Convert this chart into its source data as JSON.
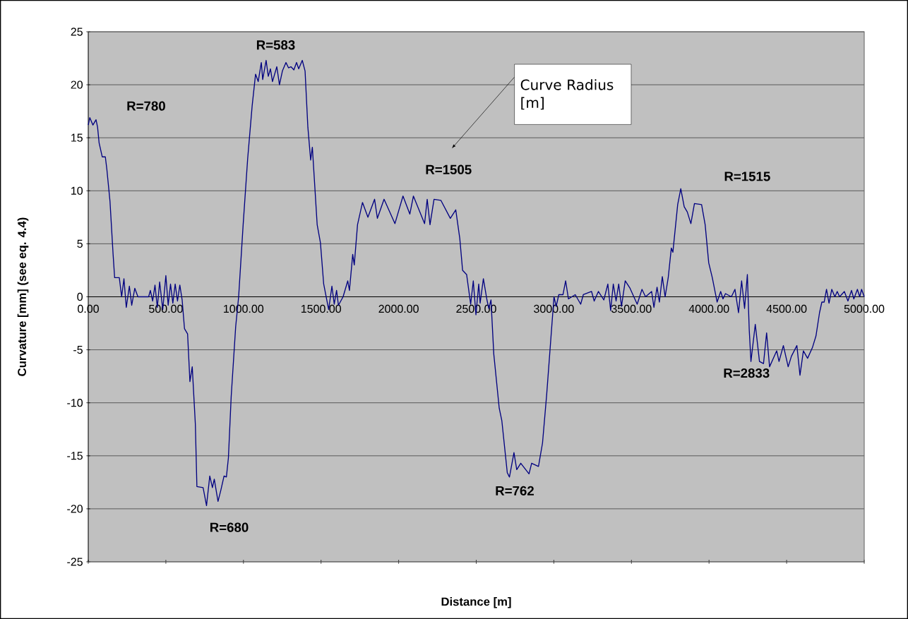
{
  "chart_data": {
    "type": "line",
    "xlabel": "Distance [m]",
    "ylabel": "Curvature [mm] (see eq. 4.4)",
    "x": [
      0,
      10,
      30,
      50,
      60,
      70,
      90,
      110,
      120,
      140,
      160,
      170,
      200,
      215,
      230,
      245,
      265,
      280,
      300,
      320,
      389,
      400,
      415,
      430,
      445,
      460,
      480,
      500,
      515,
      530,
      545,
      560,
      575,
      590,
      605,
      620,
      640,
      655,
      670,
      690,
      700,
      740,
      762,
      783,
      800,
      812,
      836,
      855,
      875,
      890,
      903,
      921,
      950,
      969,
      998,
      1027,
      1056,
      1078,
      1095,
      1115,
      1124,
      1146,
      1160,
      1174,
      1187,
      1215,
      1232,
      1251,
      1274,
      1290,
      1306,
      1325,
      1342,
      1356,
      1379,
      1397,
      1415,
      1433,
      1444,
      1475,
      1496,
      1517,
      1549,
      1570,
      1585,
      1600,
      1612,
      1642,
      1672,
      1683,
      1704,
      1714,
      1735,
      1767,
      1802,
      1845,
      1863,
      1906,
      1976,
      2028,
      2072,
      2095,
      2167,
      2184,
      2202,
      2228,
      2272,
      2333,
      2368,
      2394,
      2412,
      2438,
      2464,
      2481,
      2498,
      2516,
      2525,
      2546,
      2569,
      2581,
      2595,
      2613,
      2648,
      2665,
      2700,
      2714,
      2743,
      2761,
      2787,
      2840,
      2857,
      2901,
      2927,
      2954,
      2980,
      3001,
      3015,
      3032,
      3059,
      3076,
      3094,
      3138,
      3173,
      3190,
      3243,
      3260,
      3287,
      3322,
      3348,
      3366,
      3383,
      3401,
      3418,
      3436,
      3460,
      3491,
      3537,
      3568,
      3591,
      3630,
      3645,
      3665,
      3680,
      3699,
      3717,
      3737,
      3757,
      3767,
      3798,
      3818,
      3840,
      3860,
      3883,
      3906,
      3952,
      3975,
      3998,
      4021,
      4052,
      4075,
      4090,
      4106,
      4144,
      4167,
      4190,
      4210,
      4229,
      4247,
      4259,
      4270,
      4298,
      4325,
      4351,
      4371,
      4390,
      4436,
      4451,
      4479,
      4510,
      4531,
      4566,
      4586,
      4608,
      4635,
      4666,
      4689,
      4712,
      4727,
      4742,
      4757,
      4773,
      4791,
      4811,
      4826,
      4841,
      4872,
      4895,
      4918,
      4933,
      4956,
      4971,
      4983,
      5000
    ],
    "values": [
      16.2,
      16.9,
      16.2,
      16.7,
      16.0,
      14.5,
      13.2,
      13.2,
      12.0,
      9.0,
      4.0,
      1.8,
      1.8,
      0,
      1.7,
      -1.0,
      1.0,
      -0.8,
      0.8,
      0,
      0,
      0.6,
      -0.4,
      1.1,
      -1.0,
      1.4,
      -1.2,
      2.0,
      -0.8,
      1.2,
      -0.6,
      1.2,
      -0.4,
      1.1,
      -0.3,
      -3.0,
      -3.5,
      -8.0,
      -6.6,
      -12.0,
      -17.9,
      -18.0,
      -19.7,
      -16.9,
      -18.0,
      -17.2,
      -19.3,
      -18.2,
      -16.9,
      -17.0,
      -15.2,
      -9.4,
      -2.8,
      0,
      6.8,
      13.0,
      18.0,
      21.0,
      20.3,
      22.1,
      20.5,
      22.3,
      20.8,
      21.5,
      20.3,
      21.7,
      20.0,
      21.3,
      22.1,
      21.6,
      21.7,
      21.4,
      22.1,
      21.5,
      22.3,
      21.3,
      16.0,
      12.9,
      14.1,
      6.8,
      5.1,
      1.2,
      -1.2,
      1.0,
      -0.7,
      0.6,
      -0.8,
      0,
      1.5,
      0.6,
      4.0,
      3.0,
      6.8,
      8.9,
      7.5,
      9.2,
      7.4,
      9.2,
      6.9,
      9.5,
      7.8,
      9.5,
      6.9,
      9.2,
      6.8,
      9.2,
      9.1,
      7.4,
      8.2,
      5.5,
      2.5,
      2.1,
      -0.7,
      1.5,
      -1.7,
      1.2,
      -0.6,
      1.7,
      -0.3,
      -1.1,
      -0.3,
      -5.4,
      -10.5,
      -11.7,
      -16.6,
      -17.0,
      -14.7,
      -16.3,
      -15.7,
      -16.7,
      -15.7,
      -16.0,
      -13.8,
      -9.2,
      -4.1,
      0,
      -0.9,
      0.2,
      0.2,
      1.5,
      -0.2,
      0.2,
      -0.7,
      0.2,
      0.5,
      -0.4,
      0.5,
      -0.3,
      1.2,
      -1.3,
      1.2,
      -0.4,
      1.2,
      -0.9,
      1.5,
      0.8,
      -0.7,
      0.7,
      0,
      0.5,
      -1.0,
      0.9,
      -0.5,
      1.9,
      0,
      1.8,
      4.6,
      4.2,
      8.7,
      10.2,
      8.5,
      8.0,
      6.9,
      8.8,
      8.7,
      6.8,
      3.2,
      1.8,
      -0.5,
      0.5,
      -0.2,
      0.3,
      0,
      0.7,
      -1.5,
      1.5,
      -1.1,
      2.1,
      -3.1,
      -6.1,
      -2.6,
      -6.1,
      -6.3,
      -3.4,
      -6.6,
      -5.1,
      -6.1,
      -4.6,
      -6.6,
      -5.6,
      -4.6,
      -7.4,
      -5.1,
      -5.8,
      -4.8,
      -3.7,
      -1.5,
      -0.5,
      -0.5,
      0.7,
      -0.6,
      0.7,
      0,
      0.5,
      0,
      0.5,
      -0.4,
      0.6,
      -0.2,
      0.7,
      0,
      0.7,
      0
    ],
    "color": "#000080",
    "xlim": [
      0,
      5000
    ],
    "ylim": [
      -25,
      25
    ],
    "xticks": [
      {
        "value": 0,
        "label": "0.00"
      },
      {
        "value": 500,
        "label": "500.00"
      },
      {
        "value": 1000,
        "label": "1000.00"
      },
      {
        "value": 1500,
        "label": "1500.00"
      },
      {
        "value": 2000,
        "label": "2000.00"
      },
      {
        "value": 2500,
        "label": "2500.00"
      },
      {
        "value": 3000,
        "label": "3000.00"
      },
      {
        "value": 3500,
        "label": "3500.00"
      },
      {
        "value": 4000,
        "label": "4000.00"
      },
      {
        "value": 4500,
        "label": "4500.00"
      },
      {
        "value": 5000,
        "label": "5000.00"
      }
    ],
    "yticks": [
      -25,
      -20,
      -15,
      -10,
      -5,
      0,
      5,
      10,
      15,
      20,
      25
    ],
    "grid": "y",
    "marker": "none",
    "line_style": "solid",
    "annotations": [
      "Curve Radius [m]",
      "R=780",
      "R=583",
      "R=680",
      "R=1505",
      "R=762",
      "R=1515",
      "R=2833"
    ]
  }
}
